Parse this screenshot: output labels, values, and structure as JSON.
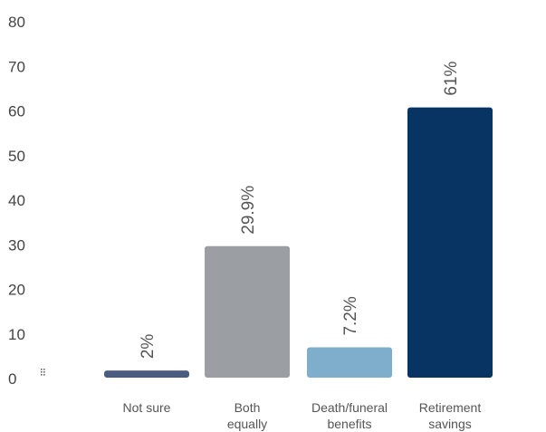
{
  "chart_data": {
    "type": "bar",
    "categories": [
      [
        "Not sure"
      ],
      [
        "Both",
        "equally"
      ],
      [
        "Death/funeral",
        "benefits"
      ],
      [
        "Retirement",
        "savings"
      ]
    ],
    "values": [
      2,
      29.9,
      7.2,
      61
    ],
    "data_labels": [
      "2%",
      "29.9%",
      "7.2%",
      "61%"
    ],
    "colors": [
      "#4a5d80",
      "#9b9ea3",
      "#7fadcc",
      "#073463"
    ],
    "yticks": [
      "0",
      "10",
      "20",
      "30",
      "40",
      "50",
      "60",
      "70",
      "80"
    ],
    "ylim": [
      0,
      80
    ],
    "grid": false,
    "title": "",
    "xlabel": "",
    "ylabel": ""
  }
}
